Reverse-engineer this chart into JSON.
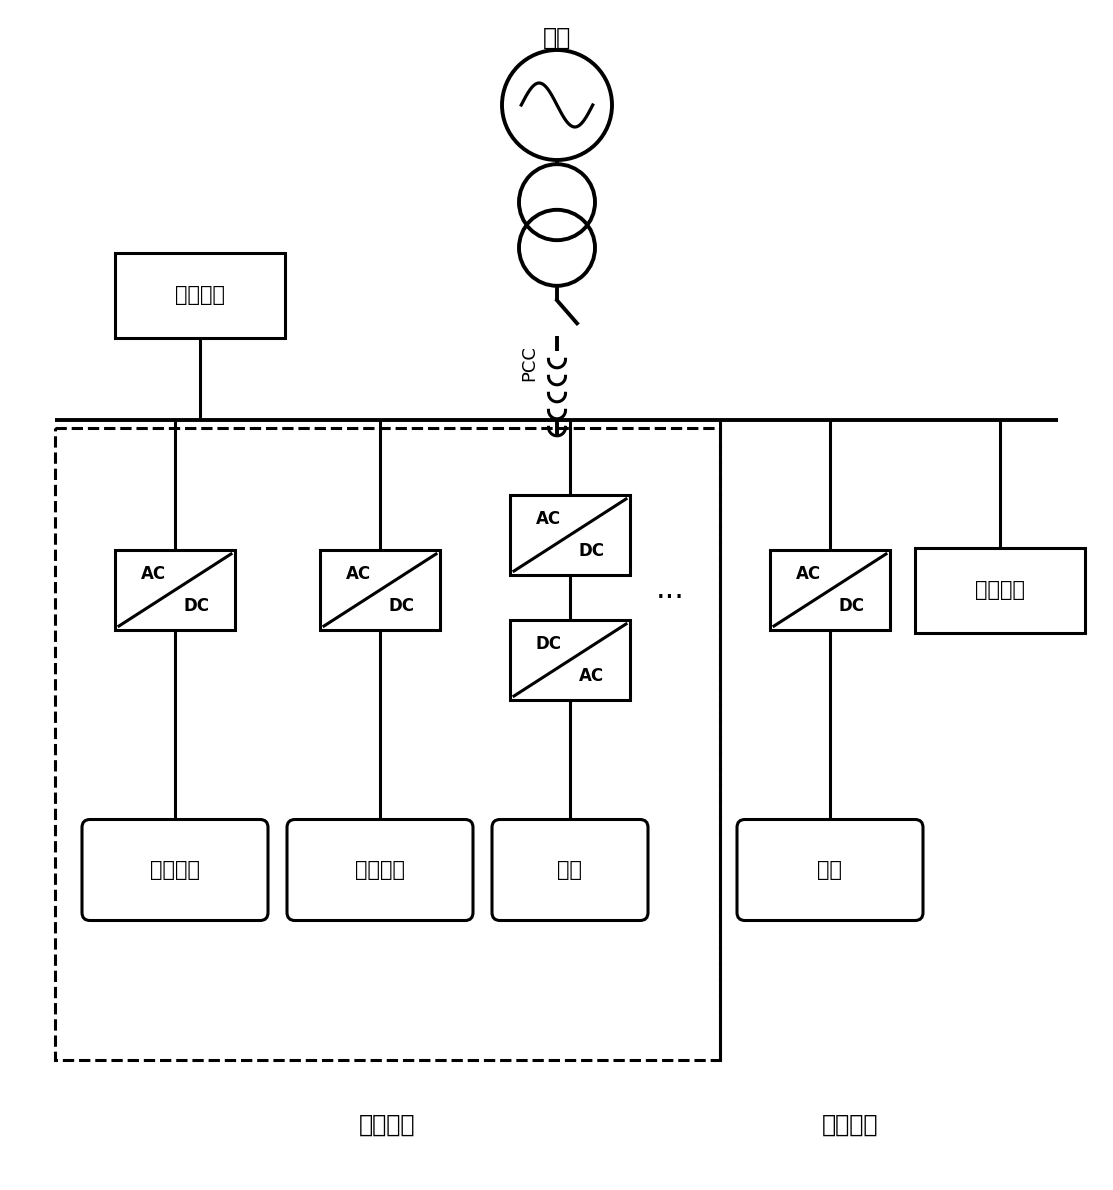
{
  "bg_color": "#ffffff",
  "line_color": "#000000",
  "figsize": [
    11.13,
    11.9
  ],
  "dpi": 100,
  "labels": {
    "grid": "电网",
    "pcc": "PCC",
    "load_top": "用电负荷",
    "pv": "光伏电池",
    "fuel": "燃料电池",
    "wind": "风机",
    "storage": "储能",
    "load_right": "用电负荷",
    "slave": "从逆变器",
    "master": "主逆变器",
    "dots": "..."
  },
  "font_sizes": {
    "label": 15,
    "pcc": 13,
    "ac_dc": 12,
    "dots": 22,
    "title_label": 17
  }
}
